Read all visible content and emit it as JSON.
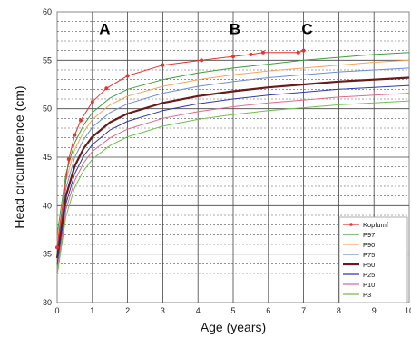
{
  "chart_data": {
    "type": "line",
    "xlabel": "Age (years)",
    "ylabel": "Head circumference (cm)",
    "xlim": [
      0,
      10
    ],
    "ylim": [
      30,
      60
    ],
    "x_ticks": [
      "0",
      "1",
      "2",
      "3",
      "4",
      "5",
      "6",
      "7",
      "8",
      "9",
      "10"
    ],
    "y_ticks": [
      "30",
      "35",
      "40",
      "45",
      "50",
      "55",
      "60"
    ],
    "grid": true,
    "legend_position": "bottom-right",
    "panel_labels": [
      {
        "text": "A",
        "x": 1.35,
        "y": 57.7
      },
      {
        "text": "B",
        "x": 5.05,
        "y": 57.7
      },
      {
        "text": "C",
        "x": 7.1,
        "y": 57.7
      }
    ],
    "series": [
      {
        "name": "Kopfumf",
        "color": "#e8322d",
        "width": 1,
        "markers": true,
        "x": [
          0,
          0.33,
          0.5,
          0.67,
          1.0,
          1.4,
          2.0,
          3.0,
          4.1,
          5.0,
          5.5,
          5.85,
          6.85,
          7.0
        ],
        "y": [
          35.7,
          44.8,
          47.3,
          48.8,
          50.7,
          52.1,
          53.4,
          54.5,
          55.0,
          55.4,
          55.6,
          55.8,
          55.8,
          56.0
        ]
      },
      {
        "name": "P97",
        "color": "#3ca03c",
        "width": 1,
        "x": [
          0,
          0.25,
          0.5,
          0.75,
          1,
          1.5,
          2,
          3,
          4,
          5,
          6,
          7,
          8,
          9,
          10
        ],
        "y": [
          37.0,
          43.3,
          46.5,
          48.3,
          49.6,
          51.1,
          52.0,
          53.0,
          53.7,
          54.2,
          54.6,
          55.0,
          55.3,
          55.6,
          55.8
        ]
      },
      {
        "name": "P90",
        "color": "#f5a35a",
        "width": 1,
        "x": [
          0,
          0.25,
          0.5,
          0.75,
          1,
          1.5,
          2,
          3,
          4,
          5,
          6,
          7,
          8,
          9,
          10
        ],
        "y": [
          36.2,
          42.6,
          45.8,
          47.6,
          48.9,
          50.4,
          51.3,
          52.3,
          53.0,
          53.5,
          53.9,
          54.2,
          54.5,
          54.8,
          55.0
        ]
      },
      {
        "name": "P75",
        "color": "#6a8fd0",
        "width": 1,
        "x": [
          0,
          0.25,
          0.5,
          0.75,
          1,
          1.5,
          2,
          3,
          4,
          5,
          6,
          7,
          8,
          9,
          10
        ],
        "y": [
          35.3,
          41.8,
          45.0,
          46.8,
          48.1,
          49.6,
          50.5,
          51.6,
          52.3,
          52.8,
          53.2,
          53.5,
          53.8,
          54.0,
          54.2
        ]
      },
      {
        "name": "P50",
        "color": "#6b1a1a",
        "width": 2.2,
        "x": [
          0,
          0.25,
          0.5,
          0.75,
          1,
          1.5,
          2,
          3,
          4,
          5,
          6,
          7,
          8,
          9,
          10
        ],
        "y": [
          34.6,
          41.0,
          44.1,
          45.9,
          47.1,
          48.6,
          49.5,
          50.6,
          51.3,
          51.8,
          52.2,
          52.5,
          52.8,
          53.0,
          53.2
        ]
      },
      {
        "name": "P25",
        "color": "#2c3aa8",
        "width": 1,
        "x": [
          0,
          0.25,
          0.5,
          0.75,
          1,
          1.5,
          2,
          3,
          4,
          5,
          6,
          7,
          8,
          9,
          10
        ],
        "y": [
          33.9,
          40.2,
          43.3,
          45.1,
          46.3,
          47.8,
          48.7,
          49.8,
          50.5,
          51.0,
          51.4,
          51.7,
          52.0,
          52.2,
          52.4
        ]
      },
      {
        "name": "P10",
        "color": "#e06a8a",
        "width": 1,
        "x": [
          0,
          0.25,
          0.5,
          0.75,
          1,
          1.5,
          2,
          3,
          4,
          5,
          6,
          7,
          8,
          9,
          10
        ],
        "y": [
          33.3,
          39.6,
          42.6,
          44.4,
          45.6,
          47.0,
          47.9,
          49.0,
          49.7,
          50.2,
          50.6,
          50.9,
          51.2,
          51.4,
          51.6
        ]
      },
      {
        "name": "P3",
        "color": "#6cc24a",
        "width": 1,
        "x": [
          0,
          0.25,
          0.5,
          0.75,
          1,
          1.5,
          2,
          3,
          4,
          5,
          6,
          7,
          8,
          9,
          10
        ],
        "y": [
          32.8,
          38.9,
          41.9,
          43.6,
          44.8,
          46.2,
          47.1,
          48.2,
          48.9,
          49.4,
          49.8,
          50.1,
          50.4,
          50.6,
          50.8
        ]
      }
    ]
  }
}
